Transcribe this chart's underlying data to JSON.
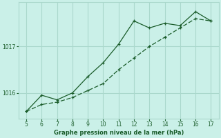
{
  "title": "Graphe pression niveau de la mer (hPa)",
  "bg_color": "#caf0e8",
  "grid_color": "#aad8cc",
  "line_color": "#1a5c2a",
  "xlim": [
    4.5,
    17.5
  ],
  "ylim": [
    1015.45,
    1017.95
  ],
  "xticks": [
    5,
    6,
    7,
    8,
    9,
    10,
    11,
    12,
    13,
    14,
    15,
    16,
    17
  ],
  "yticks": [
    1016,
    1017
  ],
  "series1_x": [
    5,
    6,
    7,
    8,
    9,
    10,
    11,
    12,
    13,
    14,
    15,
    16,
    17
  ],
  "series1_y": [
    1015.6,
    1015.95,
    1015.85,
    1016.0,
    1016.35,
    1016.65,
    1017.05,
    1017.55,
    1017.4,
    1017.5,
    1017.45,
    1017.75,
    1017.55
  ],
  "series2_x": [
    5,
    6,
    7,
    8,
    9,
    10,
    11,
    12,
    13,
    14,
    15,
    16,
    17
  ],
  "series2_y": [
    1015.6,
    1015.75,
    1015.8,
    1015.9,
    1016.05,
    1016.2,
    1016.5,
    1016.75,
    1017.0,
    1017.2,
    1017.4,
    1017.6,
    1017.55
  ]
}
